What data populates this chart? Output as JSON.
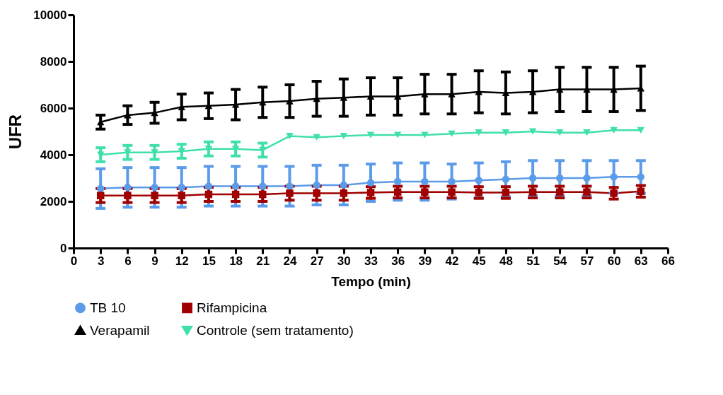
{
  "chart_data": {
    "type": "line",
    "xlabel": "Tempo (min)",
    "ylabel": "UFR",
    "x": [
      3,
      6,
      9,
      12,
      15,
      18,
      21,
      24,
      27,
      30,
      33,
      36,
      39,
      42,
      45,
      48,
      51,
      54,
      57,
      60,
      63
    ],
    "xlim": [
      0,
      66
    ],
    "xticks": [
      0,
      3,
      6,
      9,
      12,
      15,
      18,
      21,
      24,
      27,
      30,
      33,
      36,
      39,
      42,
      45,
      48,
      51,
      54,
      57,
      60,
      63,
      66
    ],
    "ylim": [
      0,
      10000
    ],
    "yticks": [
      0,
      2000,
      4000,
      6000,
      8000,
      10000
    ],
    "grid": false,
    "legend": "bottom",
    "line_style": "solid",
    "series": [
      {
        "name": "TB 10",
        "color": "#5b9bea",
        "marker": "circle",
        "values": [
          2550,
          2600,
          2600,
          2600,
          2650,
          2650,
          2650,
          2650,
          2700,
          2700,
          2800,
          2850,
          2850,
          2850,
          2900,
          2950,
          3000,
          3000,
          3000,
          3050,
          3050
        ],
        "errors": [
          850,
          850,
          850,
          850,
          850,
          850,
          850,
          850,
          850,
          850,
          800,
          800,
          800,
          750,
          750,
          750,
          750,
          750,
          750,
          700,
          700
        ]
      },
      {
        "name": "Rifampicina",
        "color": "#a00000",
        "marker": "square",
        "values": [
          2250,
          2250,
          2250,
          2250,
          2300,
          2300,
          2300,
          2350,
          2350,
          2350,
          2380,
          2400,
          2400,
          2400,
          2380,
          2380,
          2400,
          2400,
          2400,
          2350,
          2430
        ],
        "errors": [
          300,
          300,
          300,
          300,
          300,
          300,
          300,
          300,
          300,
          300,
          250,
          250,
          250,
          250,
          250,
          250,
          250,
          250,
          250,
          250,
          250
        ]
      },
      {
        "name": "Verapamil",
        "color": "#000000",
        "marker": "triangle",
        "values": [
          5400,
          5700,
          5800,
          6050,
          6100,
          6150,
          6250,
          6300,
          6400,
          6450,
          6500,
          6500,
          6600,
          6600,
          6700,
          6650,
          6700,
          6800,
          6800,
          6800,
          6850
        ],
        "errors": [
          300,
          400,
          450,
          550,
          550,
          650,
          650,
          700,
          750,
          800,
          800,
          800,
          850,
          850,
          900,
          900,
          900,
          950,
          950,
          950,
          950
        ]
      },
      {
        "name": "Controle (sem tratamento)",
        "color": "#40e0a8",
        "marker": "triangle-down",
        "values": [
          4000,
          4100,
          4100,
          4150,
          4250,
          4250,
          4200,
          4800,
          4750,
          4800,
          4850,
          4850,
          4850,
          4900,
          4950,
          4950,
          5000,
          4950,
          4950,
          5050,
          5050
        ],
        "errors": [
          300,
          300,
          300,
          300,
          300,
          300,
          300,
          null,
          null,
          null,
          null,
          null,
          null,
          null,
          null,
          null,
          null,
          null,
          null,
          null,
          null
        ]
      }
    ]
  }
}
